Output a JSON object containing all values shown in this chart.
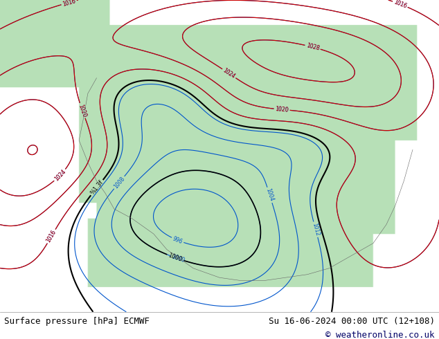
{
  "title_left": "Surface pressure [hPa] ECMWF",
  "title_right": "Su 16-06-2024 00:00 UTC (12+108)",
  "copyright": "© weatheronline.co.uk",
  "bg_color": "#ffffff",
  "map_bg": "#ffffff",
  "fig_width": 6.34,
  "fig_height": 4.9,
  "dpi": 100,
  "bottom_bar_color": "#ffffff",
  "text_color": "#000000",
  "footer_fontsize": 9,
  "copyright_fontsize": 9,
  "contour_colors_red": [
    "#cc0000",
    "#dd0000"
  ],
  "contour_colors_blue": [
    "#0000cc",
    "#0000dd"
  ],
  "contour_colors_black": [
    "#000000"
  ],
  "land_color": "#e8f4e8",
  "ocean_color": "#ffffff",
  "coast_color": "#555555",
  "green_fill": "#b8e0b8"
}
